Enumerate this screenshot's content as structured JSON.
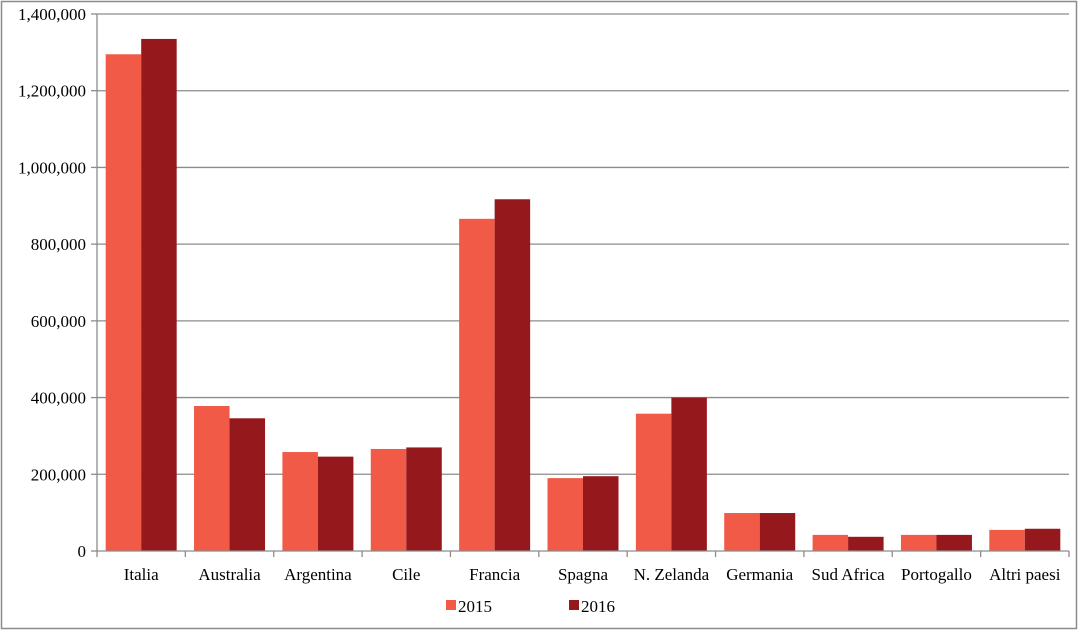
{
  "chart_data": {
    "type": "bar",
    "title": "",
    "xlabel": "",
    "ylabel": "",
    "categories": [
      "Italia",
      "Australia",
      "Argentina",
      "Cile",
      "Francia",
      "Spagna",
      "N. Zelanda",
      "Germania",
      "Sud Africa",
      "Portogallo",
      "Altri paesi"
    ],
    "series": [
      {
        "name": "2015",
        "color": "#f05a46",
        "values": [
          1295000,
          378000,
          258000,
          266000,
          866000,
          190000,
          358000,
          99000,
          42000,
          42000,
          55000
        ]
      },
      {
        "name": "2016",
        "color": "#95181c",
        "values": [
          1335000,
          346000,
          246000,
          270000,
          917000,
          195000,
          400000,
          99000,
          37000,
          42000,
          58000
        ]
      }
    ],
    "ylim": [
      0,
      1400000
    ],
    "yticks": [
      0,
      200000,
      400000,
      600000,
      800000,
      1000000,
      1200000,
      1400000
    ],
    "ytick_labels": [
      "0",
      "200,000",
      "400,000",
      "600,000",
      "800,000",
      "1,000,000",
      "1,200,000",
      "1,400,000"
    ],
    "grid": true,
    "legend_position": "bottom"
  }
}
